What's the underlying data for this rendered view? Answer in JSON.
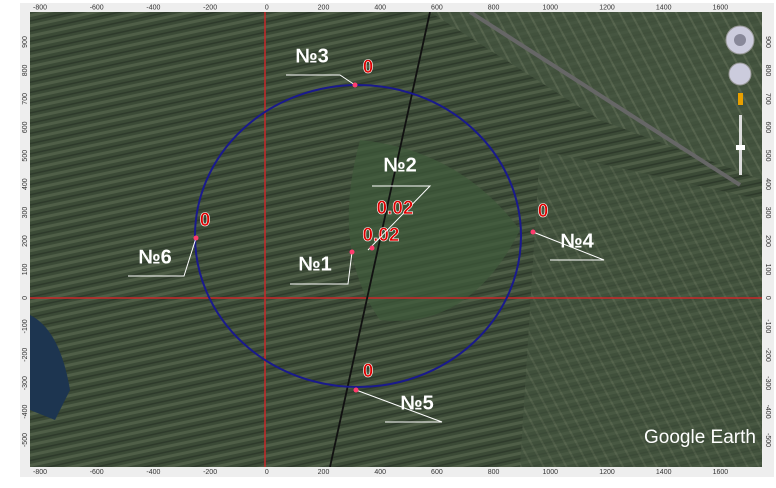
{
  "x_axis": {
    "ticks": [
      -800,
      -600,
      -400,
      -200,
      0,
      200,
      400,
      600,
      800,
      1000,
      1200,
      1400,
      1600
    ]
  },
  "y_axis": {
    "ticks": [
      900,
      800,
      700,
      600,
      500,
      400,
      300,
      200,
      100,
      0,
      -100,
      -200,
      -300,
      -400,
      -500
    ]
  },
  "points": [
    {
      "label": "№1",
      "value": 0.02
    },
    {
      "label": "№2",
      "value": 0.02
    },
    {
      "label": "№3",
      "value": 0
    },
    {
      "label": "№4",
      "value": 0
    },
    {
      "label": "№5",
      "value": 0
    },
    {
      "label": "№6",
      "value": 0
    }
  ],
  "brand": "Google Earth"
}
